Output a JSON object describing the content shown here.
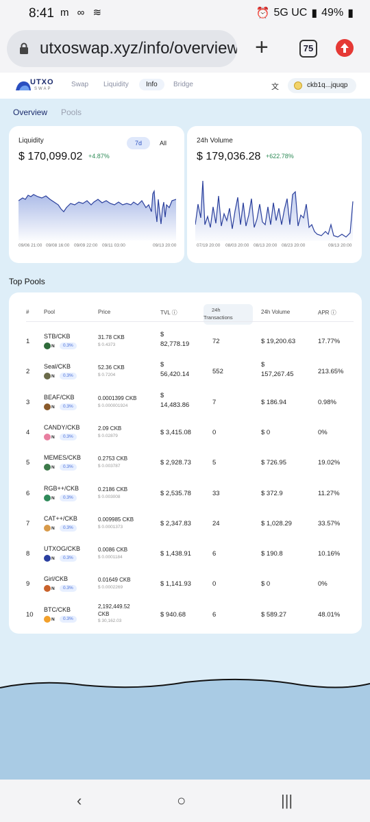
{
  "status": {
    "time": "8:41",
    "network": "5G UC",
    "battery": "49%"
  },
  "browser": {
    "url": "utxoswap.xyz/info/overview",
    "tab_count": "75"
  },
  "nav": {
    "links": [
      "Swap",
      "Liquidity",
      "Info",
      "Bridge"
    ],
    "active": "Info",
    "wallet": "ckb1q...jquqp",
    "logo_text": "UTXO",
    "logo_sub": "SWAP"
  },
  "subtabs": {
    "overview": "Overview",
    "pools": "Pools"
  },
  "liquidity": {
    "title": "Liquidity",
    "value": "$ 170,099.02",
    "change": "+4.87%",
    "range_7d": "7d",
    "range_all": "All",
    "x_labels": [
      "09/06 21:00",
      "09/08 16:00",
      "09/09 22:00",
      "09/11 03:00",
      "09/13 20:00"
    ]
  },
  "volume": {
    "title": "24h Volume",
    "value": "$ 179,036.28",
    "change": "+622.78%",
    "x_labels": [
      "07/19 20:00",
      "08/03 20:00",
      "08/13 20:00",
      "08/23 20:00",
      "09/13 20:00"
    ]
  },
  "top_pools": {
    "title": "Top Pools",
    "headers": {
      "rank": "#",
      "pool": "Pool",
      "price": "Price",
      "tvl": "TVL",
      "tx_a": "24h",
      "tx_b": "Transactions",
      "volume": "24h Volume",
      "apr": "APR"
    },
    "rows": [
      {
        "rank": "1",
        "pool": "STB/CKB",
        "fee": "0.3%",
        "price": "31.78 CKB",
        "price_usd": "$ 0.4373",
        "tvl_a": "$",
        "tvl_b": "82,778.19",
        "tx": "72",
        "vol_a": "$ 19,200.63",
        "vol_b": "",
        "apr": "17.77%",
        "color": "#2f6b3a"
      },
      {
        "rank": "2",
        "pool": "Seal/CKB",
        "fee": "0.3%",
        "price": "52.36 CKB",
        "price_usd": "$ 0.7204",
        "tvl_a": "$",
        "tvl_b": "56,420.14",
        "tx": "552",
        "vol_a": "$",
        "vol_b": "157,267.45",
        "apr": "213.65%",
        "color": "#6b6b4a"
      },
      {
        "rank": "3",
        "pool": "BEAF/CKB",
        "fee": "0.3%",
        "price": "0.0001399 CKB",
        "price_usd": "$ 0.000001924",
        "tvl_a": "$",
        "tvl_b": "14,483.86",
        "tx": "7",
        "vol_a": "$ 186.94",
        "vol_b": "",
        "apr": "0.98%",
        "color": "#8a5a2b"
      },
      {
        "rank": "4",
        "pool": "CANDY/CKB",
        "fee": "0.3%",
        "price": "2.09 CKB",
        "price_usd": "$ 0.02879",
        "tvl_a": "$ 3,415.08",
        "tvl_b": "",
        "tx": "0",
        "vol_a": "$ 0",
        "vol_b": "",
        "apr": "0%",
        "color": "#e87fa0"
      },
      {
        "rank": "5",
        "pool": "MEMES/CKB",
        "fee": "0.3%",
        "price": "0.2753 CKB",
        "price_usd": "$ 0.003787",
        "tvl_a": "$ 2,928.73",
        "tvl_b": "",
        "tx": "5",
        "vol_a": "$ 726.95",
        "vol_b": "",
        "apr": "19.02%",
        "color": "#3d7a4a"
      },
      {
        "rank": "6",
        "pool": "RGB++/CKB",
        "fee": "0.3%",
        "price": "0.2186 CKB",
        "price_usd": "$ 0.003008",
        "tvl_a": "$ 2,535.78",
        "tvl_b": "",
        "tx": "33",
        "vol_a": "$ 372.9",
        "vol_b": "",
        "apr": "11.27%",
        "color": "#2f8a5a"
      },
      {
        "rank": "7",
        "pool": "CAT++/CKB",
        "fee": "0.3%",
        "price": "0.009985 CKB",
        "price_usd": "$ 0.0001373",
        "tvl_a": "$ 2,347.83",
        "tvl_b": "",
        "tx": "24",
        "vol_a": "$ 1,028.29",
        "vol_b": "",
        "apr": "33.57%",
        "color": "#d89a4a"
      },
      {
        "rank": "8",
        "pool": "UTXOG/CKB",
        "fee": "0.3%",
        "price": "0.0086 CKB",
        "price_usd": "$ 0.0001184",
        "tvl_a": "$ 1,438.91",
        "tvl_b": "",
        "tx": "6",
        "vol_a": "$ 190.8",
        "vol_b": "",
        "apr": "10.16%",
        "color": "#2a3fa0"
      },
      {
        "rank": "9",
        "pool": "Girl/CKB",
        "fee": "0.3%",
        "price": "0.01649 CKB",
        "price_usd": "$ 0.0002269",
        "tvl_a": "$ 1,141.93",
        "tvl_b": "",
        "tx": "0",
        "vol_a": "$ 0",
        "vol_b": "",
        "apr": "0%",
        "color": "#c9622b"
      },
      {
        "rank": "10",
        "pool": "BTC/CKB",
        "fee": "0.3%",
        "price": "2,192,449.52",
        "price_b": "CKB",
        "price_usd": "$ 30,162.03",
        "tvl_a": "$ 940.68",
        "tvl_b": "",
        "tx": "6",
        "vol_a": "$ 589.27",
        "vol_b": "",
        "apr": "48.01%",
        "color": "#f2a02b"
      }
    ]
  },
  "colors": {
    "accent": "#4a6fd8",
    "positive": "#2e8b57",
    "page_bg": "#deeef8"
  }
}
